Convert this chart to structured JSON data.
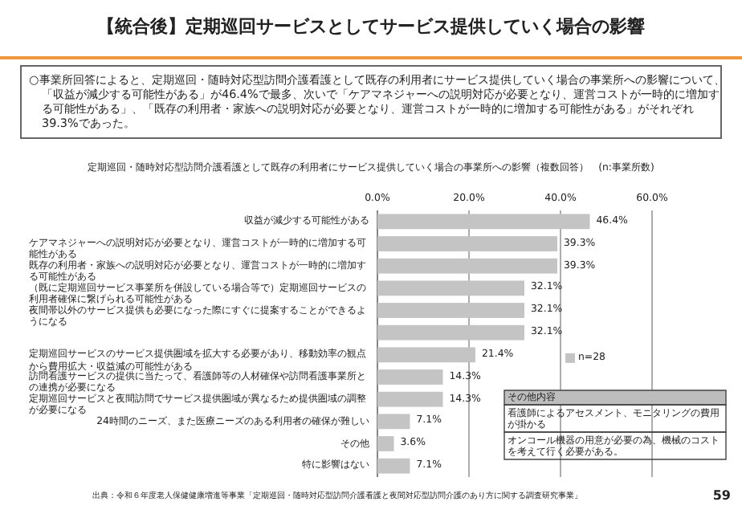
{
  "chart_data": {
    "type": "bar",
    "orientation": "horizontal",
    "title": "【統合後】定期巡回サービスとしてサービス提供していく場合の影響",
    "subtitle": "定期巡回・随時対応型訪問介護看護として既存の利用者にサービス提供していく場合の事業所への影響（複数回答）　(n:事業所数)",
    "categories": [
      "収益が減少する可能性がある",
      "ケアマネジャーへの説明対応が必要となり、運営コストが一時的に増加する可能性がある",
      "既存の利用者・家族への説明対応が必要となり、運営コストが一時的に増加する可能性がある",
      "（既に定期巡回サービス事業所を併設している場合等で）定期巡回サービスの利用者確保に繋げられる可能性がある",
      "夜間帯以外のサービス提供も必要になった際にすぐに提案することができるようになる",
      null,
      "定期巡回サービスのサービス提供圏域を拡大する必要があり、移動効率の観点から費用拡大・収益減の可能性がある",
      "訪問看護サービスの提供に当たって、看護師等の人材確保や訪問看護事業所との連携が必要になる",
      "定期巡回サービスと夜間訪問でサービス提供圏域が異なるため提供圏域の調整が必要になる",
      "24時間のニーズ、また医療ニーズのある利用者の確保が難しい",
      "その他",
      "特に影響はない"
    ],
    "series": [
      {
        "name": "n=28",
        "color": "#c4c4c4",
        "values": [
          46.4,
          39.3,
          39.3,
          32.1,
          32.1,
          32.1,
          21.4,
          14.3,
          14.3,
          7.1,
          3.6,
          7.1
        ],
        "value_labels": [
          "46.4%",
          "39.3%",
          "39.3%",
          "32.1%",
          "32.1%",
          "32.1%",
          "21.4%",
          "14.3%",
          "14.3%",
          "7.1%",
          "3.6%",
          "7.1%"
        ]
      }
    ],
    "xlim": [
      0,
      60
    ],
    "xticks": [
      {
        "value": 0,
        "label": "0.0%"
      },
      {
        "value": 20,
        "label": "20.0%"
      },
      {
        "value": 40,
        "label": "40.0%"
      },
      {
        "value": 60,
        "label": "60.0%"
      }
    ],
    "grid": "x",
    "legend": "right",
    "annotations": [
      "○事業所回答によると、定期巡回・随時対応型訪問介護看護として既存の利用者にサービス提供していく場合の事業所への影響について、「収益が減少する可能性がある」が46.4%で最多、次いで「ケアマネジャーへの説明対応が必要となり、運営コストが一時的に増加する可能性がある」、「既存の利用者・家族への説明対応が必要となり、運営コストが一時的に増加する可能性がある」がそれぞれ39.3%であった。",
      "その他内容",
      "看護師によるアセスメント、モニタリングの費用が掛かる",
      "オンコール機器の用意が必要の為、機械のコストを考えて行く必要がある。",
      "出典：令和６年度老人保健健康増進等事業「定期巡回・随時対応型訪問介護看護と夜間対応型訪問介護のあり方に関する調査研究事業」",
      "59"
    ]
  }
}
